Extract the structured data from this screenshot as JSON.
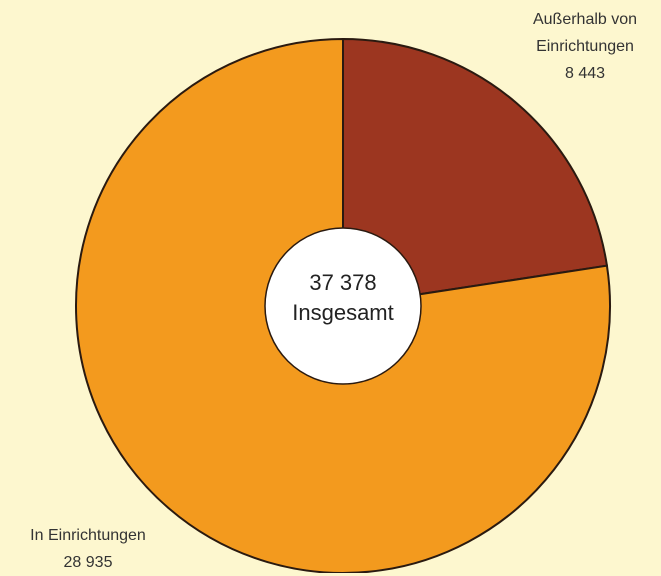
{
  "chart_data": {
    "type": "pie",
    "categories": [
      "Außerhalb von Einrichtungen",
      "In Einrichtungen"
    ],
    "values": [
      8443,
      28935
    ],
    "value_labels": [
      "8 443",
      "28 935"
    ],
    "colors": [
      "#9c3620",
      "#f39a1e"
    ],
    "total": 37378,
    "total_label": "37 378",
    "total_name": "Insgesamt"
  }
}
